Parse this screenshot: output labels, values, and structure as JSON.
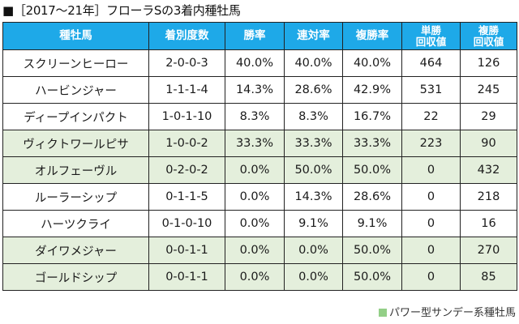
{
  "title": "■［2017～21年］フローラSの3着内種牡馬",
  "colors": {
    "header_bg": "#1ea9e8",
    "power_row_bg": "#e4efdc",
    "legend_swatch": "#93cf87",
    "border": "#222222"
  },
  "table": {
    "headers": [
      {
        "label": "種牡馬"
      },
      {
        "label": "着別度数"
      },
      {
        "label": "勝率"
      },
      {
        "label": "連対率"
      },
      {
        "label": "複勝率"
      },
      {
        "line1": "単勝",
        "line2": "回収値"
      },
      {
        "line1": "複勝",
        "line2": "回収値"
      }
    ],
    "rows": [
      {
        "sire": "スクリーンヒーロー",
        "record": "2-0-0-3",
        "win": "40.0%",
        "quinella": "40.0%",
        "place": "40.0%",
        "win_return": "464",
        "place_return": "126",
        "power_type": false
      },
      {
        "sire": "ハービンジャー",
        "record": "1-1-1-4",
        "win": "14.3%",
        "quinella": "28.6%",
        "place": "42.9%",
        "win_return": "531",
        "place_return": "245",
        "power_type": false
      },
      {
        "sire": "ディープインパクト",
        "record": "1-0-1-10",
        "win": "8.3%",
        "quinella": "8.3%",
        "place": "16.7%",
        "win_return": "22",
        "place_return": "29",
        "power_type": false
      },
      {
        "sire": "ヴィクトワールピサ",
        "record": "1-0-0-2",
        "win": "33.3%",
        "quinella": "33.3%",
        "place": "33.3%",
        "win_return": "223",
        "place_return": "90",
        "power_type": true
      },
      {
        "sire": "オルフェーヴル",
        "record": "0-2-0-2",
        "win": "0.0%",
        "quinella": "50.0%",
        "place": "50.0%",
        "win_return": "0",
        "place_return": "432",
        "power_type": true
      },
      {
        "sire": "ルーラーシップ",
        "record": "0-1-1-5",
        "win": "0.0%",
        "quinella": "14.3%",
        "place": "28.6%",
        "win_return": "0",
        "place_return": "218",
        "power_type": false
      },
      {
        "sire": "ハーツクライ",
        "record": "0-1-0-10",
        "win": "0.0%",
        "quinella": "9.1%",
        "place": "9.1%",
        "win_return": "0",
        "place_return": "16",
        "power_type": false
      },
      {
        "sire": "ダイワメジャー",
        "record": "0-0-1-1",
        "win": "0.0%",
        "quinella": "0.0%",
        "place": "50.0%",
        "win_return": "0",
        "place_return": "270",
        "power_type": true
      },
      {
        "sire": "ゴールドシップ",
        "record": "0-0-1-1",
        "win": "0.0%",
        "quinella": "0.0%",
        "place": "50.0%",
        "win_return": "0",
        "place_return": "85",
        "power_type": true
      }
    ]
  },
  "legend": {
    "swatch_icon": "green-square",
    "label": "パワー型サンデー系種牡馬"
  }
}
